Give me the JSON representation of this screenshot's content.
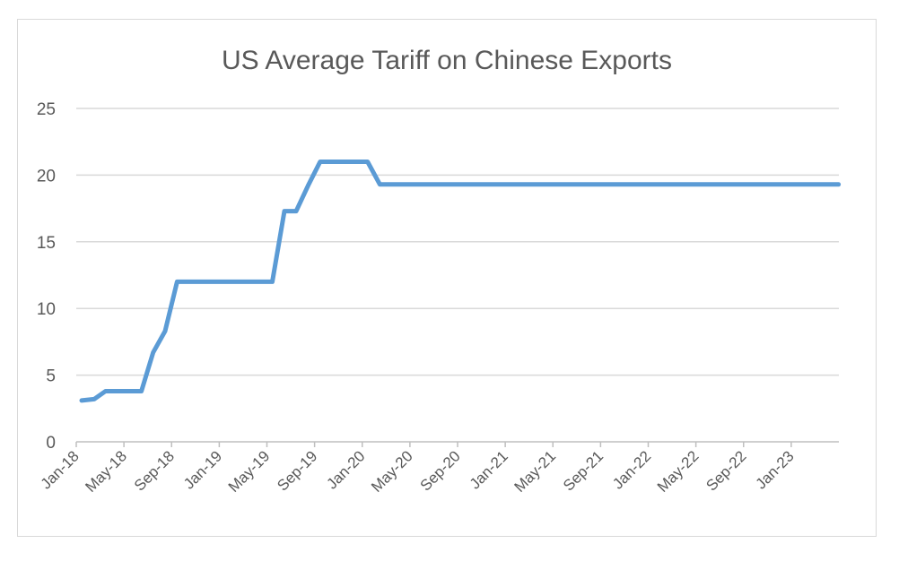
{
  "chart_data": {
    "type": "line",
    "title": "US Average Tariff on Chinese Exports",
    "xlabel": "",
    "ylabel": "",
    "ylim": [
      0,
      25
    ],
    "yticks": [
      "0",
      "5",
      "10",
      "15",
      "20",
      "25"
    ],
    "xlim": [
      "2018-01",
      "2023-05"
    ],
    "xticks": [
      "Jan-18",
      "May-18",
      "Sep-18",
      "Jan-19",
      "May-19",
      "Sep-19",
      "Jan-20",
      "May-20",
      "Sep-20",
      "Jan-21",
      "May-21",
      "Sep-21",
      "Jan-22",
      "May-22",
      "Sep-22",
      "Jan-23"
    ],
    "grid": true,
    "legend": "none",
    "line_color": "#5b9bd5",
    "series": [
      {
        "x": [
          "2018-01-15",
          "2018-02-15",
          "2018-03-15",
          "2018-04-15",
          "2018-05-15",
          "2018-06-15",
          "2018-07-15",
          "2018-08-15",
          "2018-09-15",
          "2018-10-15",
          "2018-11-15",
          "2018-12-15",
          "2019-01-15",
          "2019-02-15",
          "2019-03-15",
          "2019-04-15",
          "2019-05-15",
          "2019-06-15",
          "2019-07-15",
          "2019-08-15",
          "2019-09-15",
          "2019-10-15",
          "2019-11-15",
          "2019-12-15",
          "2020-01-15",
          "2020-02-15",
          "2023-04-30"
        ],
        "values": [
          3.1,
          3.2,
          3.8,
          3.8,
          3.8,
          3.8,
          6.7,
          8.3,
          12.0,
          12.0,
          12.0,
          12.0,
          12.0,
          12.0,
          12.0,
          12.0,
          12.0,
          17.3,
          17.3,
          19.2,
          21.0,
          21.0,
          21.0,
          21.0,
          21.0,
          19.3,
          19.3
        ]
      }
    ]
  }
}
